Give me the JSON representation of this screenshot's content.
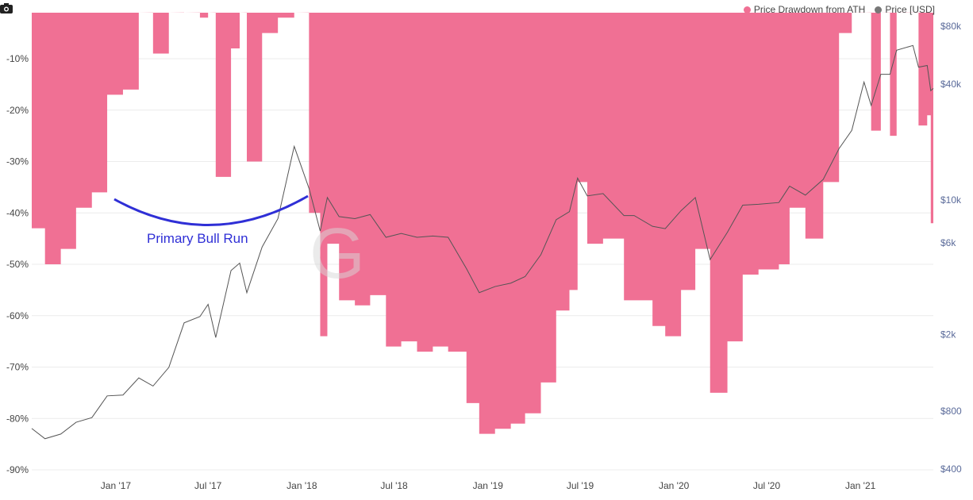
{
  "chart_data": {
    "type": "area",
    "title": "",
    "legend": [
      "Price Drawdown from ATH",
      "Price [USD]"
    ],
    "legend_placement": "top-right",
    "colors": {
      "drawdown": "#f07094",
      "price": "#555555",
      "annotation": "#2f2fd6"
    },
    "x_ticks": [
      "Jan '17",
      "Jul '17",
      "Jan '18",
      "Jul '18",
      "Jan '19",
      "Jul '19",
      "Jan '20",
      "Jul '20",
      "Jan '21"
    ],
    "x_tick_dates": [
      "2017-01-01",
      "2017-07-01",
      "2018-01-01",
      "2018-07-01",
      "2019-01-01",
      "2019-07-01",
      "2020-01-01",
      "2020-07-01",
      "2021-01-01"
    ],
    "xlim": [
      "2016-07-20",
      "2021-05-24"
    ],
    "y_left": {
      "label": "Price Drawdown from ATH",
      "ticks": [
        "-10%",
        "-20%",
        "-30%",
        "-40%",
        "-50%",
        "-60%",
        "-70%",
        "-80%",
        "-90%"
      ],
      "tick_values": [
        -10,
        -20,
        -30,
        -40,
        -50,
        -60,
        -70,
        -80,
        -90
      ],
      "range": [
        -90,
        -1
      ]
    },
    "y_right": {
      "label": "Price [USD]",
      "scale": "log",
      "ticks": [
        "$80k",
        "$40k",
        "$10k",
        "$6k",
        "$2k",
        "$800",
        "$400"
      ],
      "tick_values": [
        80000,
        40000,
        10000,
        6000,
        2000,
        800,
        400
      ],
      "range": [
        400,
        80000
      ]
    },
    "annotation": "Primary Bull Run",
    "dates": [
      "2016-07-20",
      "2016-08-15",
      "2016-09-15",
      "2016-10-15",
      "2016-11-15",
      "2016-12-15",
      "2017-01-15",
      "2017-02-15",
      "2017-03-15",
      "2017-04-15",
      "2017-05-15",
      "2017-06-15",
      "2017-07-01",
      "2017-07-16",
      "2017-08-15",
      "2017-09-01",
      "2017-09-15",
      "2017-10-15",
      "2017-11-15",
      "2017-12-17",
      "2018-01-15",
      "2018-02-06",
      "2018-02-20",
      "2018-03-15",
      "2018-04-15",
      "2018-05-15",
      "2018-06-15",
      "2018-07-15",
      "2018-08-15",
      "2018-09-15",
      "2018-10-15",
      "2018-11-20",
      "2018-12-15",
      "2019-01-15",
      "2019-02-15",
      "2019-03-15",
      "2019-04-15",
      "2019-05-15",
      "2019-06-10",
      "2019-06-26",
      "2019-07-15",
      "2019-08-15",
      "2019-09-25",
      "2019-10-15",
      "2019-11-20",
      "2019-12-15",
      "2020-01-15",
      "2020-02-12",
      "2020-03-12",
      "2020-04-15",
      "2020-05-15",
      "2020-06-15",
      "2020-07-25",
      "2020-08-15",
      "2020-09-15",
      "2020-10-20",
      "2020-11-20",
      "2020-12-15",
      "2021-01-08",
      "2021-01-22",
      "2021-02-10",
      "2021-02-28",
      "2021-03-13",
      "2021-04-14",
      "2021-04-25",
      "2021-05-12",
      "2021-05-19",
      "2021-05-24"
    ],
    "price": [
      650,
      575,
      608,
      700,
      740,
      960,
      970,
      1190,
      1080,
      1350,
      2300,
      2480,
      2870,
      1930,
      4300,
      4700,
      3300,
      5700,
      8000,
      19000,
      11500,
      6900,
      10300,
      8200,
      8000,
      8400,
      6400,
      6700,
      6400,
      6500,
      6400,
      4400,
      3300,
      3550,
      3700,
      4000,
      5200,
      7900,
      8700,
      13000,
      10500,
      10800,
      8300,
      8300,
      7300,
      7100,
      8800,
      10300,
      4900,
      6800,
      9400,
      9500,
      9700,
      11800,
      10600,
      12800,
      18500,
      23000,
      41000,
      31000,
      45000,
      45000,
      60000,
      63500,
      49000,
      50000,
      37000,
      38000
    ],
    "drawdown": [
      -43,
      -50,
      -47,
      -39,
      -36,
      -17,
      -16,
      -1,
      -9,
      -1,
      -1,
      -2,
      -1,
      -33,
      -8,
      -1,
      -30,
      -5,
      -2,
      -1,
      -40,
      -64,
      -46,
      -57,
      -58,
      -56,
      -66,
      -65,
      -67,
      -66,
      -67,
      -77,
      -83,
      -82,
      -81,
      -79,
      -73,
      -59,
      -55,
      -34,
      -46,
      -45,
      -57,
      -57,
      -62,
      -64,
      -55,
      -47,
      -75,
      -65,
      -52,
      -51,
      -50,
      -39,
      -45,
      -34,
      -5,
      -1,
      -1,
      -24,
      -1,
      -25,
      -1,
      -1,
      -23,
      -21,
      -42,
      -40
    ]
  }
}
